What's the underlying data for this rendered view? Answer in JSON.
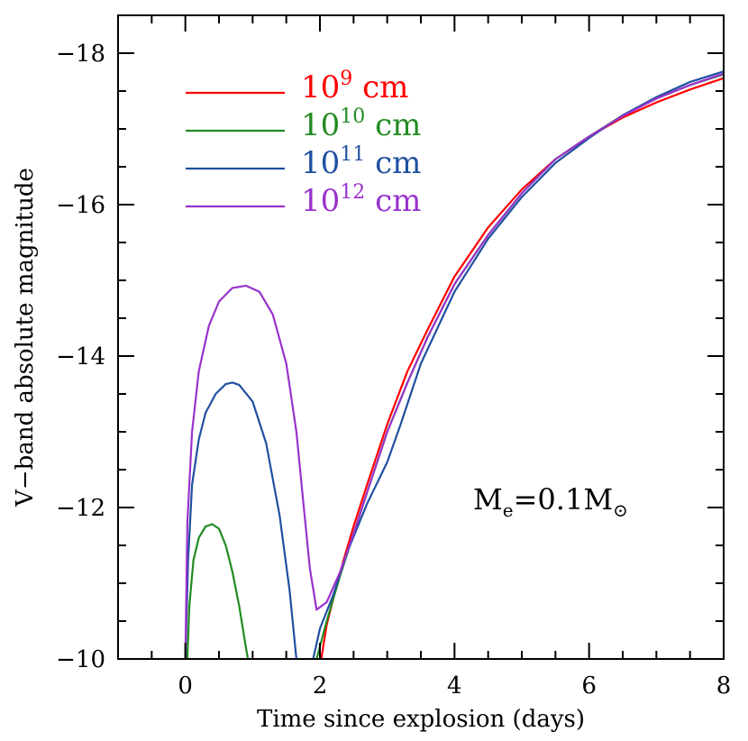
{
  "chart_data": {
    "type": "line",
    "xlabel": "Time since explosion (days)",
    "ylabel": "V−band absolute magnitude",
    "xlim": [
      -1,
      8
    ],
    "ylim": [
      -10,
      -18.5
    ],
    "y_inverted": true,
    "x_ticks": [
      0,
      2,
      4,
      6,
      8
    ],
    "x_tick_labels": [
      "0",
      "2",
      "4",
      "6",
      "8"
    ],
    "y_ticks": [
      -10,
      -12,
      -14,
      -16,
      -18
    ],
    "y_tick_labels": [
      "−10",
      "−12",
      "−14",
      "−16",
      "−18"
    ],
    "annotation": {
      "text": "M",
      "subscript": "e",
      "equals": "=0.1M",
      "symbol": "⊙"
    },
    "legend_placement": "top-left",
    "series": [
      {
        "name": "10^9 cm",
        "legend_base": "10",
        "legend_exp": "9",
        "legend_unit": " cm",
        "color": "#ff0000",
        "x": [
          2.02,
          2.1,
          2.2,
          2.35,
          2.5,
          2.7,
          3.0,
          3.3,
          3.6,
          4.0,
          4.5,
          5.0,
          5.5,
          6.0,
          6.5,
          7.0,
          7.5,
          8.0
        ],
        "y": [
          -10.0,
          -10.45,
          -10.8,
          -11.3,
          -11.75,
          -12.3,
          -13.1,
          -13.8,
          -14.35,
          -15.05,
          -15.7,
          -16.2,
          -16.6,
          -16.9,
          -17.15,
          -17.35,
          -17.52,
          -17.67
        ]
      },
      {
        "name": "10^10 cm",
        "legend_base": "10",
        "legend_exp": "10",
        "legend_unit": " cm",
        "color": "#228b22",
        "x": [
          0.03,
          0.06,
          0.12,
          0.2,
          0.3,
          0.4,
          0.5,
          0.6,
          0.7,
          0.8,
          0.9,
          0.93,
          null,
          1.95,
          2.1,
          2.3,
          2.5,
          2.7,
          3.0,
          3.3,
          3.6,
          4.0,
          4.5,
          5.0,
          5.5,
          6.0,
          6.5,
          7.0,
          7.5,
          8.0
        ],
        "y": [
          -10.0,
          -10.7,
          -11.3,
          -11.6,
          -11.75,
          -11.78,
          -11.72,
          -11.5,
          -11.15,
          -10.7,
          -10.15,
          -10.0,
          null,
          -10.0,
          -10.5,
          -11.1,
          -11.65,
          -12.2,
          -13.0,
          -13.65,
          -14.25,
          -14.95,
          -15.6,
          -16.15,
          -16.6,
          -16.9,
          -17.18,
          -17.4,
          -17.58,
          -17.72
        ]
      },
      {
        "name": "10^11 cm",
        "legend_base": "10",
        "legend_exp": "11",
        "legend_unit": " cm",
        "color": "#2050a0",
        "x": [
          0.0,
          0.04,
          0.1,
          0.2,
          0.3,
          0.45,
          0.6,
          0.7,
          0.8,
          1.0,
          1.2,
          1.4,
          1.55,
          1.65,
          null,
          1.9,
          2.0,
          2.2,
          2.4,
          2.7,
          3.0,
          3.2,
          3.5,
          4.0,
          4.5,
          5.0,
          5.5,
          6.0,
          6.5,
          7.0,
          7.5,
          8.0
        ],
        "y": [
          -10.0,
          -11.3,
          -12.3,
          -12.9,
          -13.25,
          -13.5,
          -13.63,
          -13.65,
          -13.62,
          -13.4,
          -12.85,
          -11.9,
          -10.9,
          -10.0,
          null,
          -10.0,
          -10.4,
          -10.85,
          -11.4,
          -12.05,
          -12.6,
          -13.1,
          -13.9,
          -14.85,
          -15.55,
          -16.1,
          -16.55,
          -16.88,
          -17.18,
          -17.42,
          -17.62,
          -17.76
        ]
      },
      {
        "name": "10^12 cm",
        "legend_base": "10",
        "legend_exp": "12",
        "legend_unit": " cm",
        "color": "#9932cc",
        "x": [
          0.0,
          0.03,
          0.1,
          0.2,
          0.35,
          0.5,
          0.7,
          0.9,
          1.1,
          1.3,
          1.5,
          1.65,
          1.75,
          1.85,
          1.95,
          2.1,
          2.3,
          2.5,
          2.7,
          3.0,
          3.3,
          3.6,
          4.0,
          4.5,
          5.0,
          5.5,
          6.0,
          6.5,
          7.0,
          7.5,
          8.0
        ],
        "y": [
          -10.0,
          -11.8,
          -13.0,
          -13.8,
          -14.4,
          -14.72,
          -14.9,
          -14.93,
          -14.85,
          -14.55,
          -13.9,
          -13.0,
          -12.1,
          -11.2,
          -10.65,
          -10.75,
          -11.15,
          -11.65,
          -12.2,
          -13.0,
          -13.65,
          -14.25,
          -14.95,
          -15.6,
          -16.15,
          -16.6,
          -16.9,
          -17.17,
          -17.4,
          -17.58,
          -17.73
        ]
      }
    ]
  }
}
